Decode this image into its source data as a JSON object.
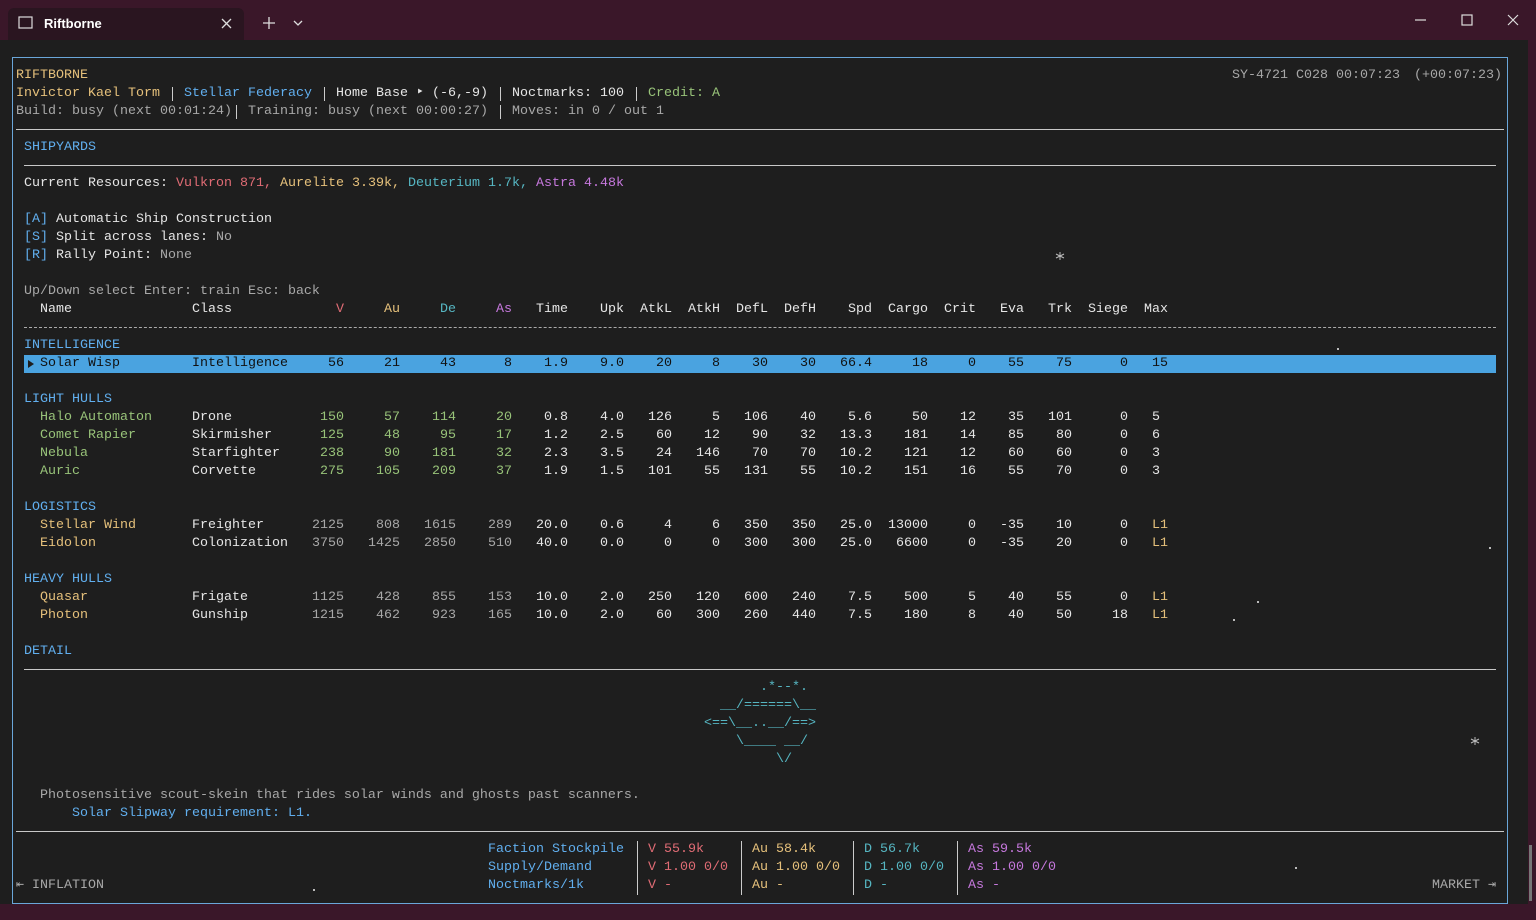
{
  "window": {
    "tab_title": "Riftborne"
  },
  "header": {
    "title": "RIFTBORNE",
    "player": "Invictor Kael Torm",
    "faction": "Stellar Federacy",
    "base": "Home Base ‣ (-6,-9)",
    "noctmarks": "Noctmarks: 100",
    "credit": "Credit: A",
    "build": "Build: busy (next 00:01:24)",
    "training": "Training: busy (next 00:00:27)",
    "moves": "Moves: in 0 / out 1",
    "clock": "SY-4721 C028 00:07:23",
    "elapsed": "(+00:07:23)"
  },
  "shipyards": {
    "title": "SHIPYARDS",
    "resources_label": "Current Resources:",
    "resources": [
      "Vulkron 871,",
      "Aurelite 3.39k,",
      "Deuterium 1.7k,",
      "Astra 4.48k"
    ],
    "options": [
      {
        "key": "[A]",
        "label": "Automatic Ship Construction"
      },
      {
        "key": "[S]",
        "label": "Split across lanes:",
        "value": "No"
      },
      {
        "key": "[R]",
        "label": "Rally Point:",
        "value": "None"
      }
    ],
    "help": "Up/Down select Enter: train Esc: back"
  },
  "table": {
    "columns": [
      "Name",
      "Class",
      "V",
      "Au",
      "De",
      "As",
      "Time",
      "Upk",
      "AtkL",
      "AtkH",
      "DefL",
      "DefH",
      "Spd",
      "Cargo",
      "Crit",
      "Eva",
      "Trk",
      "Siege",
      "Max"
    ],
    "groups": [
      {
        "title": "INTELLIGENCE",
        "rows": [
          [
            "Solar Wisp",
            "Intelligence",
            "56",
            "21",
            "43",
            "8",
            "1.9",
            "9.0",
            "20",
            "8",
            "30",
            "30",
            "66.4",
            "18",
            "0",
            "55",
            "75",
            "0",
            "15"
          ]
        ]
      },
      {
        "title": "LIGHT HULLS",
        "rows": [
          [
            "Halo Automaton",
            "Drone",
            "150",
            "57",
            "114",
            "20",
            "0.8",
            "4.0",
            "126",
            "5",
            "106",
            "40",
            "5.6",
            "50",
            "12",
            "35",
            "101",
            "0",
            "5"
          ],
          [
            "Comet Rapier",
            "Skirmisher",
            "125",
            "48",
            "95",
            "17",
            "1.2",
            "2.5",
            "60",
            "12",
            "90",
            "32",
            "13.3",
            "181",
            "14",
            "85",
            "80",
            "0",
            "6"
          ],
          [
            "Nebula",
            "Starfighter",
            "238",
            "90",
            "181",
            "32",
            "2.3",
            "3.5",
            "24",
            "146",
            "70",
            "70",
            "10.2",
            "121",
            "12",
            "60",
            "60",
            "0",
            "3"
          ],
          [
            "Auric",
            "Corvette",
            "275",
            "105",
            "209",
            "37",
            "1.9",
            "1.5",
            "101",
            "55",
            "131",
            "55",
            "10.2",
            "151",
            "16",
            "55",
            "70",
            "0",
            "3"
          ]
        ]
      },
      {
        "title": "LOGISTICS",
        "rows": [
          [
            "Stellar Wind",
            "Freighter",
            "2125",
            "808",
            "1615",
            "289",
            "20.0",
            "0.6",
            "4",
            "6",
            "350",
            "350",
            "25.0",
            "13000",
            "0",
            "-35",
            "10",
            "0",
            "L1"
          ],
          [
            "Eidolon",
            "Colonization",
            "3750",
            "1425",
            "2850",
            "510",
            "40.0",
            "0.0",
            "0",
            "0",
            "300",
            "300",
            "25.0",
            "6600",
            "0",
            "-35",
            "20",
            "0",
            "L1"
          ]
        ]
      },
      {
        "title": "HEAVY HULLS",
        "rows": [
          [
            "Quasar",
            "Frigate",
            "1125",
            "428",
            "855",
            "153",
            "10.0",
            "2.0",
            "250",
            "120",
            "600",
            "240",
            "7.5",
            "500",
            "5",
            "40",
            "55",
            "0",
            "L1"
          ],
          [
            "Photon",
            "Gunship",
            "1215",
            "462",
            "923",
            "165",
            "10.0",
            "2.0",
            "60",
            "300",
            "260",
            "440",
            "7.5",
            "180",
            "8",
            "40",
            "50",
            "18",
            "L1"
          ]
        ]
      }
    ]
  },
  "detail": {
    "title": "DETAIL",
    "art": [
      "       .*--*.",
      "  __/======\\__",
      "<==\\__..__/==>",
      "    \\____ __/",
      "         \\/"
    ],
    "description": "Photosensitive scout-skein that rides solar winds and ghosts past scanners.",
    "requirement": "Solar Slipway requirement: L1."
  },
  "footer": {
    "labels": [
      "Faction Stockpile",
      "Supply/Demand",
      "Noctmarks/1k"
    ],
    "resources": [
      [
        "V 55.9k",
        "V 1.00 0/0",
        "V -"
      ],
      [
        "Au 58.4k",
        "Au 1.00 0/0",
        "Au -"
      ],
      [
        "D 56.7k",
        "D 1.00 0/0",
        "D -"
      ],
      [
        "As 59.5k",
        "As 1.00 0/0",
        "As -"
      ]
    ],
    "left": "⇤ INFLATION",
    "right": "MARKET ⇥"
  }
}
